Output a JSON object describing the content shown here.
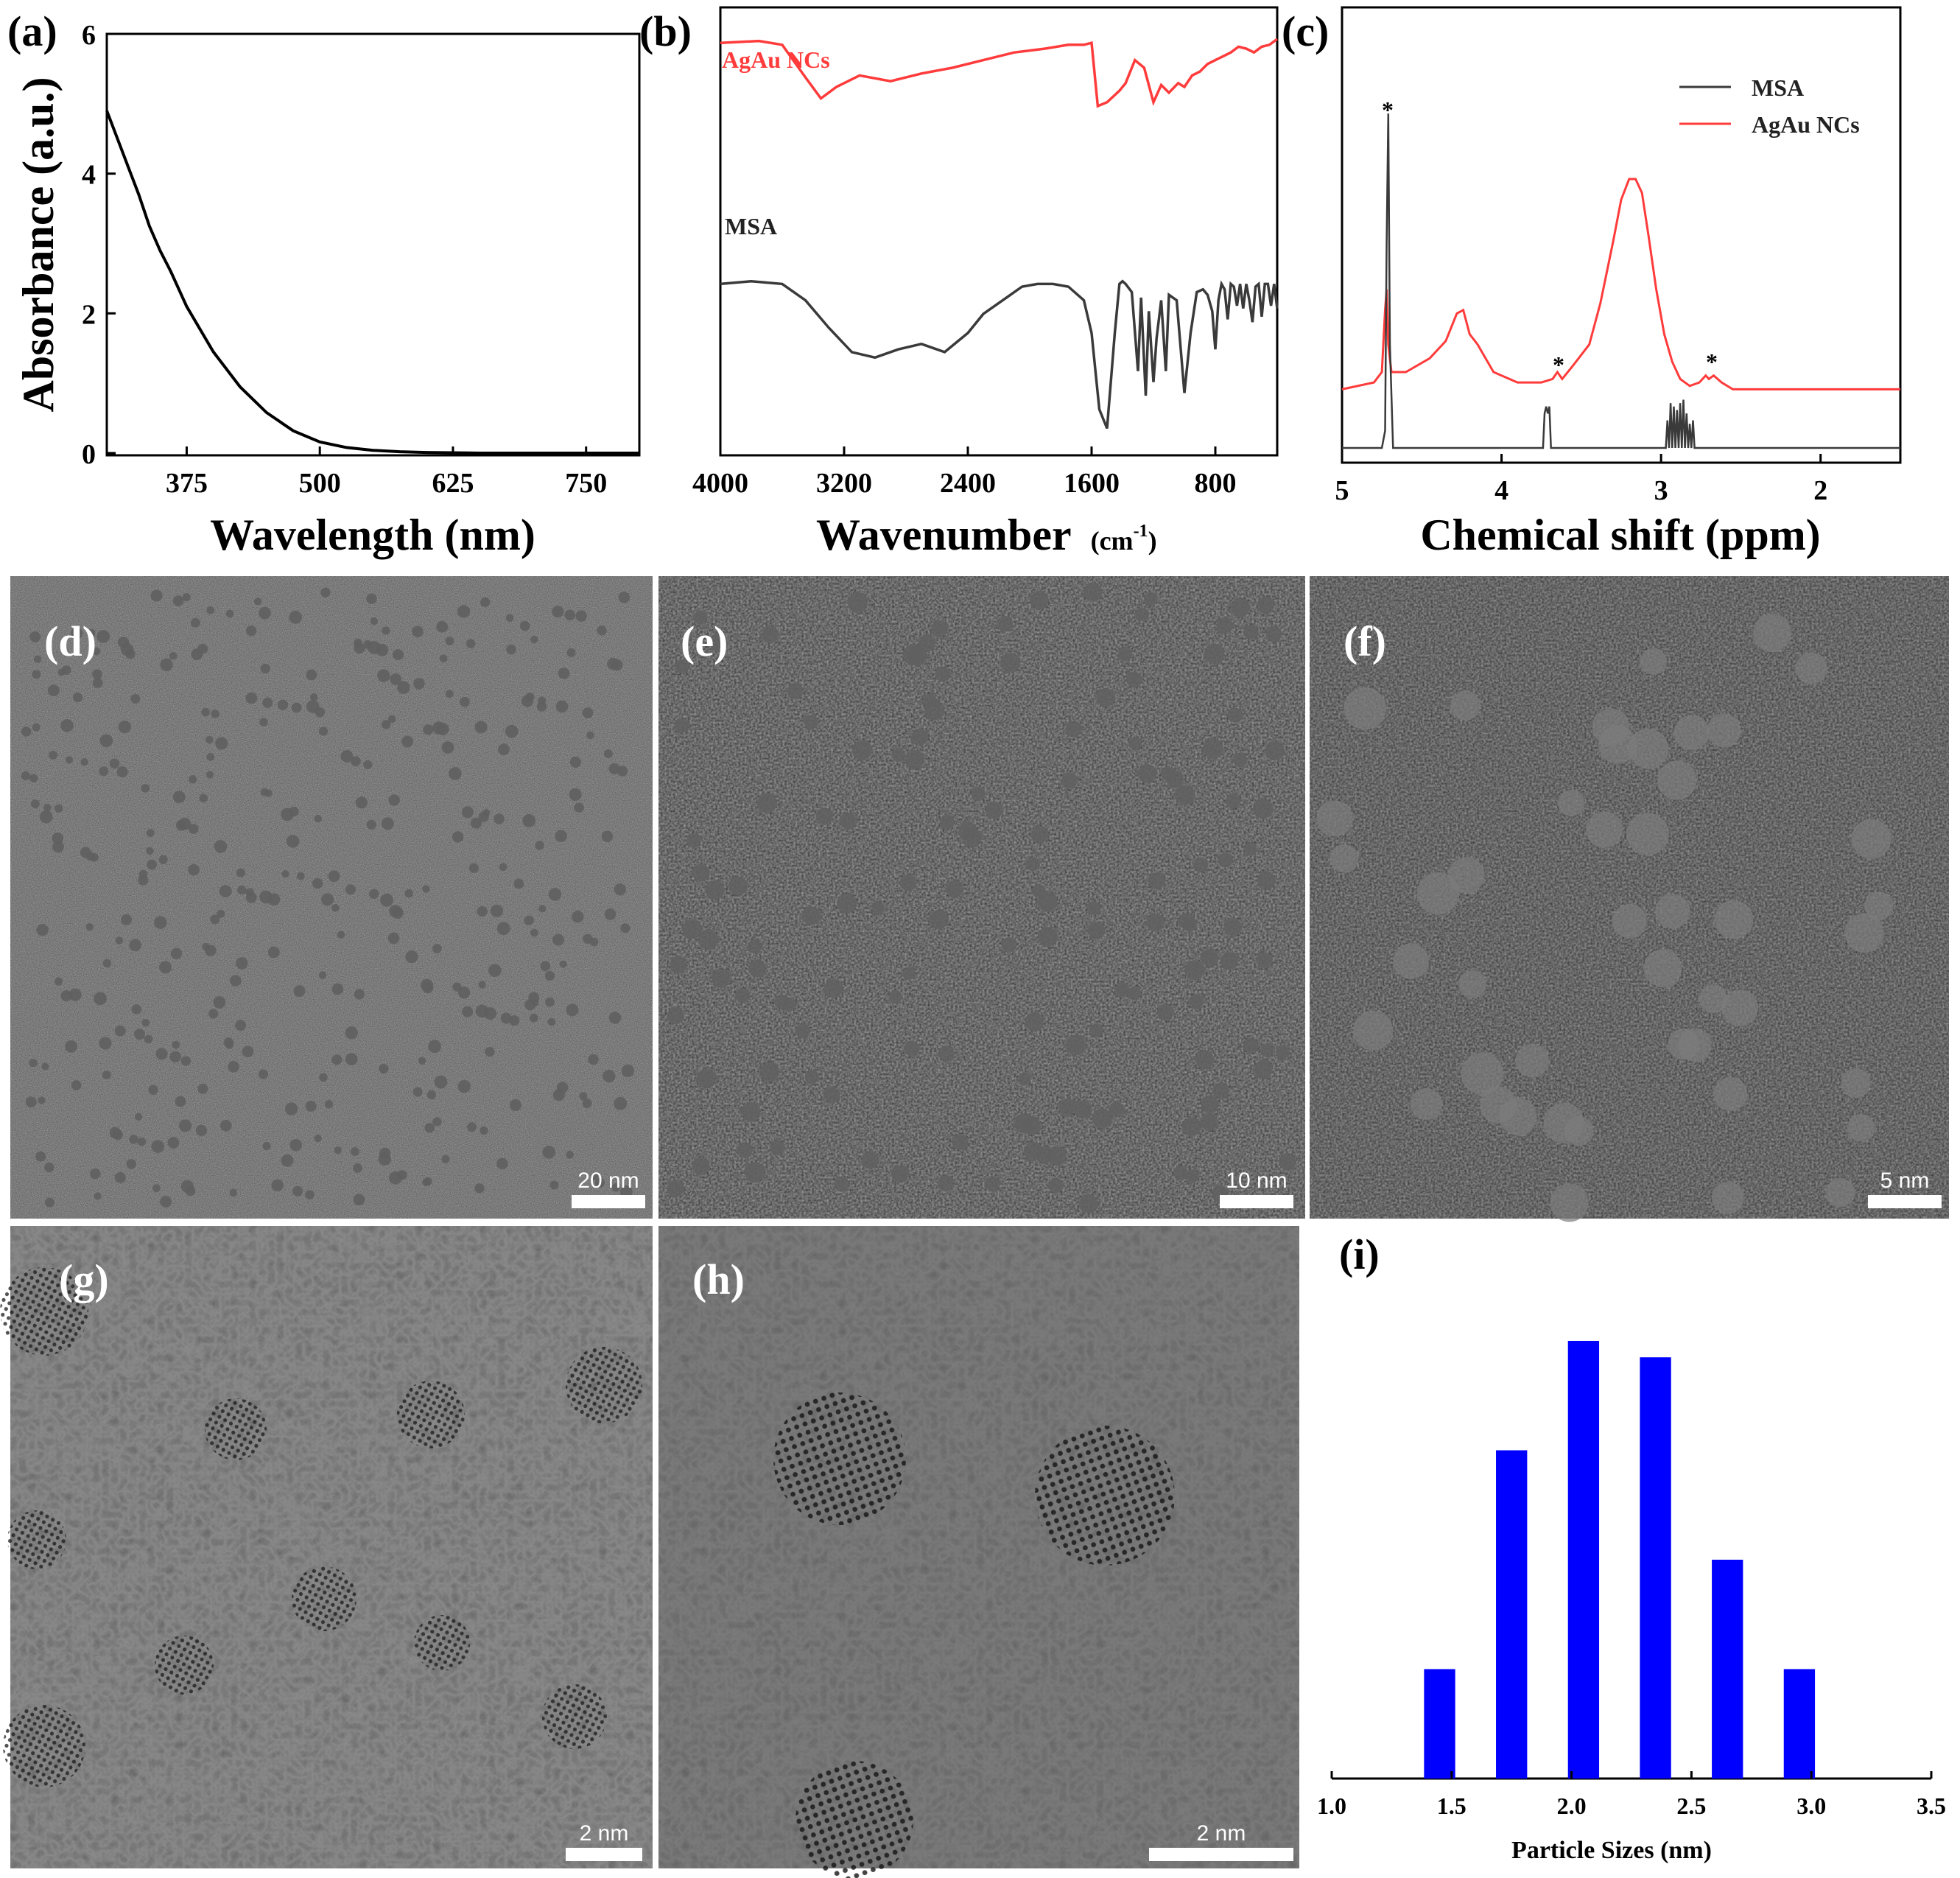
{
  "panel_labels": [
    "(a)",
    "(b)",
    "(c)",
    "(d)",
    "(e)",
    "(f)",
    "(g)",
    "(h)",
    "(i)"
  ],
  "colors": {
    "msa": "#3a3a3a",
    "agau": "#ff3b3b",
    "bar": "#0000ff",
    "tem_dark": "#5a5a5a",
    "tem_light": "#a8a8a8"
  },
  "chart_data": [
    {
      "id": "a",
      "type": "line",
      "xlabel": "Wavelength (nm)",
      "ylabel": "Absorbance (a.u.)",
      "xticks": [
        375,
        500,
        625,
        750
      ],
      "yticks": [
        0,
        2,
        4,
        6
      ],
      "xlim": [
        300,
        800
      ],
      "ylim": [
        0,
        6
      ],
      "series": [
        {
          "x": [
            300,
            310,
            320,
            330,
            340,
            350,
            360,
            375,
            400,
            425,
            450,
            475,
            500,
            525,
            550,
            575,
            600,
            650,
            700,
            750,
            800
          ],
          "y": [
            4.9,
            4.5,
            4.1,
            3.7,
            3.25,
            2.9,
            2.6,
            2.1,
            1.45,
            0.95,
            0.58,
            0.32,
            0.16,
            0.08,
            0.04,
            0.02,
            0.01,
            0.0,
            0.0,
            0.0,
            0.0
          ]
        }
      ]
    },
    {
      "id": "b",
      "type": "line",
      "xlabel": "Wavenumber",
      "xunit": "(cm",
      "xunit_sup": "-1",
      "xunit_close": ")",
      "xticks": [
        4000,
        3200,
        2400,
        1600,
        800
      ],
      "xlim": [
        4000,
        400
      ],
      "series": [
        {
          "name": "AgAu NCs",
          "x": [
            4000,
            3750,
            3600,
            3450,
            3350,
            3250,
            3100,
            2900,
            2700,
            2500,
            2300,
            2100,
            1900,
            1750,
            1650,
            1600,
            1560,
            1500,
            1420,
            1380,
            1320,
            1260,
            1200,
            1150,
            1100,
            1040,
            1000,
            950,
            900,
            850,
            800,
            750,
            700,
            650,
            600,
            550,
            500,
            450,
            400
          ],
          "y": [
            0.93,
            0.94,
            0.92,
            0.75,
            0.64,
            0.7,
            0.76,
            0.73,
            0.77,
            0.8,
            0.84,
            0.88,
            0.9,
            0.92,
            0.92,
            0.93,
            0.6,
            0.62,
            0.68,
            0.72,
            0.84,
            0.8,
            0.62,
            0.71,
            0.67,
            0.72,
            0.7,
            0.76,
            0.78,
            0.82,
            0.84,
            0.86,
            0.88,
            0.91,
            0.9,
            0.88,
            0.91,
            0.92,
            0.95
          ]
        },
        {
          "name": "MSA",
          "x": [
            4000,
            3800,
            3600,
            3450,
            3300,
            3150,
            3000,
            2850,
            2700,
            2550,
            2400,
            2300,
            2150,
            2050,
            1950,
            1850,
            1750,
            1650,
            1600,
            1550,
            1500,
            1450,
            1420,
            1400,
            1380,
            1340,
            1300,
            1280,
            1250,
            1230,
            1200,
            1180,
            1150,
            1120,
            1100,
            1050,
            1000,
            960,
            920,
            880,
            850,
            820,
            800,
            780,
            760,
            740,
            720,
            700,
            680,
            660,
            640,
            620,
            600,
            580,
            560,
            540,
            520,
            500,
            480,
            460,
            440,
            420,
            400
          ],
          "y": [
            0.58,
            0.59,
            0.58,
            0.52,
            0.42,
            0.33,
            0.31,
            0.34,
            0.36,
            0.33,
            0.4,
            0.47,
            0.53,
            0.57,
            0.58,
            0.58,
            0.57,
            0.52,
            0.4,
            0.12,
            0.05,
            0.4,
            0.58,
            0.59,
            0.58,
            0.55,
            0.26,
            0.53,
            0.17,
            0.48,
            0.22,
            0.38,
            0.52,
            0.26,
            0.54,
            0.52,
            0.18,
            0.4,
            0.55,
            0.56,
            0.54,
            0.48,
            0.34,
            0.52,
            0.58,
            0.56,
            0.45,
            0.58,
            0.57,
            0.5,
            0.58,
            0.49,
            0.58,
            0.52,
            0.44,
            0.57,
            0.58,
            0.46,
            0.58,
            0.58,
            0.5,
            0.58,
            0.49
          ]
        }
      ]
    },
    {
      "id": "c",
      "type": "line",
      "xlabel": "Chemical shift (ppm)",
      "xticks": [
        5,
        4,
        3,
        2
      ],
      "xlim": [
        5,
        1.5
      ],
      "legend": [
        "MSA",
        "AgAu NCs"
      ],
      "legend_position": "top-right",
      "peak_marker": "*",
      "series": [
        {
          "name": "MSA",
          "x": [
            5.0,
            4.75,
            4.73,
            4.72,
            4.71,
            4.7,
            4.68,
            3.74,
            3.73,
            3.72,
            3.71,
            3.7,
            3.69,
            2.97,
            2.96,
            2.95,
            2.94,
            2.93,
            2.92,
            2.91,
            2.9,
            2.89,
            2.88,
            2.87,
            2.86,
            2.85,
            2.84,
            2.83,
            2.82,
            2.81,
            2.8,
            2.79,
            1.5
          ],
          "y": [
            0.0,
            0.0,
            0.05,
            0.6,
            0.97,
            0.3,
            0.0,
            0.0,
            0.1,
            0.12,
            0.1,
            0.12,
            0.0,
            0.0,
            0.08,
            0.0,
            0.13,
            0.0,
            0.12,
            0.0,
            0.11,
            0.0,
            0.13,
            0.0,
            0.14,
            0.0,
            0.1,
            0.0,
            0.07,
            0.0,
            0.08,
            0.0,
            0.0
          ]
        },
        {
          "name": "AgAu NCs",
          "x": [
            5.0,
            4.8,
            4.75,
            4.73,
            4.72,
            4.71,
            4.69,
            4.6,
            4.45,
            4.35,
            4.28,
            4.24,
            4.2,
            4.15,
            4.05,
            3.9,
            3.75,
            3.68,
            3.65,
            3.62,
            3.55,
            3.45,
            3.38,
            3.3,
            3.25,
            3.2,
            3.16,
            3.12,
            3.08,
            3.03,
            2.98,
            2.93,
            2.88,
            2.82,
            2.76,
            2.72,
            2.7,
            2.67,
            2.62,
            2.55,
            2.4,
            2.2,
            2.0,
            1.8,
            1.5
          ],
          "y": [
            0.17,
            0.19,
            0.22,
            0.4,
            0.46,
            0.3,
            0.22,
            0.22,
            0.26,
            0.31,
            0.39,
            0.4,
            0.33,
            0.3,
            0.22,
            0.19,
            0.19,
            0.2,
            0.22,
            0.2,
            0.24,
            0.3,
            0.42,
            0.6,
            0.72,
            0.78,
            0.78,
            0.74,
            0.62,
            0.46,
            0.33,
            0.25,
            0.2,
            0.18,
            0.19,
            0.21,
            0.2,
            0.21,
            0.19,
            0.17,
            0.17,
            0.17,
            0.17,
            0.17,
            0.17
          ]
        }
      ]
    },
    {
      "id": "i",
      "type": "bar",
      "xlabel": "Particle Sizes (nm)",
      "xticks": [
        1.0,
        1.5,
        2.0,
        2.5,
        3.0,
        3.5
      ],
      "xlim": [
        1.0,
        3.5
      ],
      "bar_width": 0.13,
      "x": [
        1.45,
        1.75,
        2.05,
        2.35,
        2.65,
        2.95
      ],
      "values": [
        2,
        6,
        8,
        7.7,
        4,
        2
      ],
      "ylim": [
        0,
        8.7
      ]
    }
  ],
  "tem_panels": [
    {
      "id": "d",
      "scale_bar": "20 nm"
    },
    {
      "id": "e",
      "scale_bar": "10 nm"
    },
    {
      "id": "f",
      "scale_bar": "5 nm"
    },
    {
      "id": "g",
      "scale_bar": "2 nm"
    },
    {
      "id": "h",
      "scale_bar": "2 nm"
    }
  ]
}
